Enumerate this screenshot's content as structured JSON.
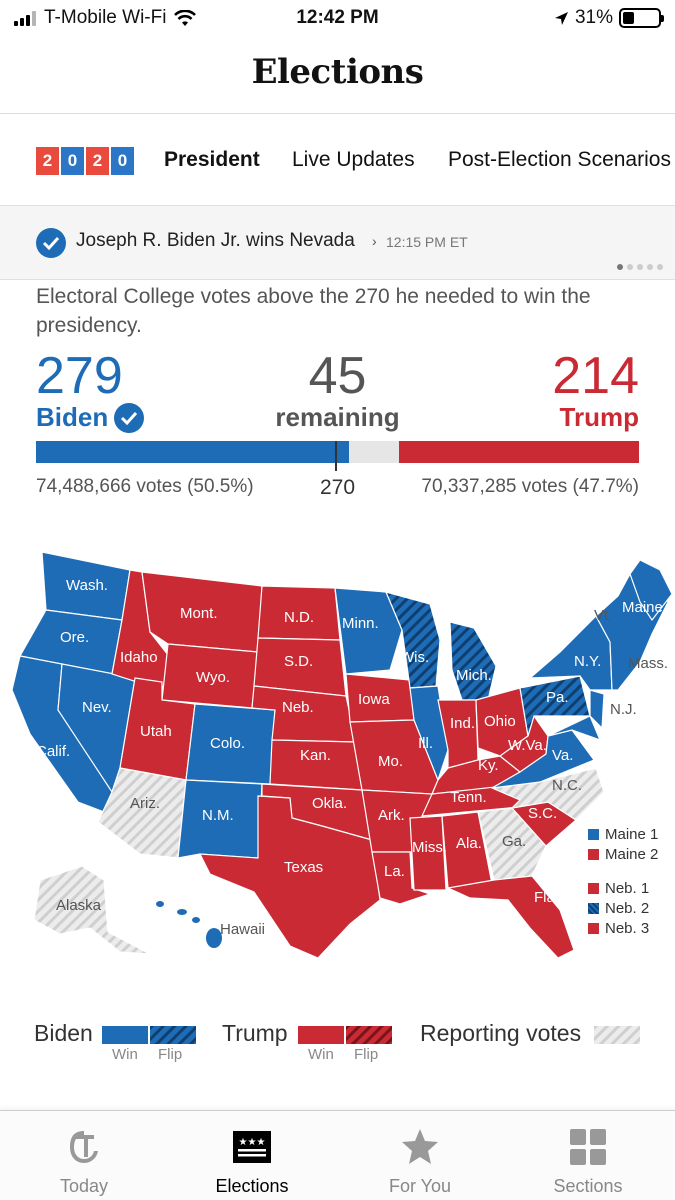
{
  "status_bar": {
    "carrier": "T-Mobile Wi-Fi",
    "time": "12:42 PM",
    "battery": "31%",
    "battery_level": 0.31
  },
  "header": {
    "title": "Elections"
  },
  "tabs": {
    "year_digits": [
      "2",
      "0",
      "2",
      "0"
    ],
    "items": [
      {
        "label": "President",
        "active": true
      },
      {
        "label": "Live Updates",
        "active": false
      },
      {
        "label": "Post-Election Scenarios",
        "active": false
      }
    ]
  },
  "banner": {
    "headline": "Joseph R. Biden Jr. wins Nevada",
    "chevron": "›",
    "time": "12:15 PM ET",
    "page_count": 5,
    "active_page": 0
  },
  "summary": {
    "description": "Electoral College votes above the 270 he needed to win the presidency.",
    "biden": {
      "electoral_votes": "279",
      "name": "Biden",
      "votes": "74,488,666 votes (50.5%)"
    },
    "remaining": {
      "count": "45",
      "label": "remaining"
    },
    "trump": {
      "electoral_votes": "214",
      "name": "Trump",
      "votes": "70,337,285 votes (47.7%)"
    },
    "threshold": "270",
    "total_electoral": 538
  },
  "colors": {
    "biden": "#1d6cb5",
    "trump": "#c92a34",
    "remaining": "#e6e6e6",
    "reporting": "#d9d9d9",
    "year_red": "#e84a3d",
    "year_blue": "#2b76c6"
  },
  "map": {
    "state_labels": {
      "wash": "Wash.",
      "ore": "Ore.",
      "calif": "Calif.",
      "nev": "Nev.",
      "idaho": "Idaho",
      "mont": "Mont.",
      "wyo": "Wyo.",
      "utah": "Utah",
      "colo": "Colo.",
      "ariz": "Ariz.",
      "nm": "N.M.",
      "nd": "N.D.",
      "sd": "S.D.",
      "neb": "Neb.",
      "kan": "Kan.",
      "okla": "Okla.",
      "texas": "Texas",
      "minn": "Minn.",
      "iowa": "Iowa",
      "mo": "Mo.",
      "ark": "Ark.",
      "la": "La.",
      "wis": "Wis.",
      "ill": "Ill.",
      "mich": "Mich.",
      "ind": "Ind.",
      "ohio": "Ohio",
      "ky": "Ky.",
      "tenn": "Tenn.",
      "miss": "Miss.",
      "ala": "Ala.",
      "ga": "Ga.",
      "fla": "Fla.",
      "sc": "S.C.",
      "nc": "N.C.",
      "va": "Va.",
      "wva": "W.Va.",
      "pa": "Pa.",
      "ny": "N.Y.",
      "nj": "N.J.",
      "vt": "Vt.",
      "maine": "Maine",
      "mass": "Mass.",
      "alaska": "Alaska",
      "hawaii": "Hawaii"
    },
    "districts": [
      {
        "label": "Maine 1",
        "color": "#1d6cb5",
        "flip": false
      },
      {
        "label": "Maine 2",
        "color": "#c92a34",
        "flip": false
      },
      {
        "label": "Neb. 1",
        "color": "#c92a34",
        "flip": false
      },
      {
        "label": "Neb. 2",
        "color": "#1d6cb5",
        "flip": true
      },
      {
        "label": "Neb. 3",
        "color": "#c92a34",
        "flip": false
      }
    ]
  },
  "legend": {
    "biden": "Biden",
    "trump": "Trump",
    "win": "Win",
    "flip": "Flip",
    "reporting": "Reporting votes"
  },
  "nav": {
    "items": [
      {
        "label": "Today",
        "icon": "nyt-logo-icon",
        "active": false
      },
      {
        "label": "Elections",
        "icon": "ballot-icon",
        "active": true
      },
      {
        "label": "For You",
        "icon": "star-icon",
        "active": false
      },
      {
        "label": "Sections",
        "icon": "grid-icon",
        "active": false
      }
    ]
  }
}
